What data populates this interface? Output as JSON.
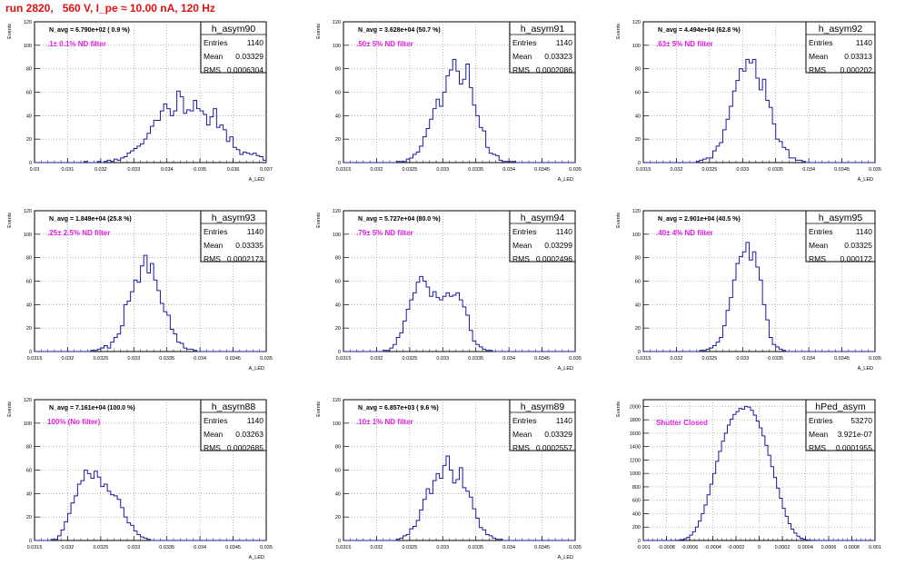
{
  "header": {
    "title": "run 2820,   560 V, I_pe ≈ 10.00 nA, 120 Hz"
  },
  "colors": {
    "histogram": "#1a1aa0",
    "note": "#e020e0",
    "title": "#e01010",
    "grid": "#888888"
  },
  "chart_data": [
    {
      "type": "bar",
      "name": "h_asym90",
      "navg_text": "N_avg = 6.790e+02 ( 0.9 %)",
      "note": ".1± 0.1% ND filter",
      "stats": {
        "entries": "1140",
        "mean": "0.03329",
        "rms": "0.0006304"
      },
      "ylabel": "Events",
      "xlabel": "A_LED",
      "xlim": [
        0.03,
        0.037
      ],
      "ylim": [
        0,
        120
      ],
      "xticks": [
        "0.03",
        "0.031",
        "0.032",
        "0.033",
        "0.034",
        "0.035",
        "0.036",
        "0.037"
      ],
      "yticks": [
        "0",
        "20",
        "40",
        "60",
        "80",
        "100",
        "120"
      ],
      "bins_x0": 0.03,
      "bin_width": 0.0001,
      "values": [
        0,
        0,
        0,
        0,
        0,
        0,
        0,
        0,
        0,
        0,
        0,
        0,
        0,
        0,
        0,
        1,
        0,
        0,
        0,
        1,
        0,
        1,
        2,
        1,
        3,
        2,
        4,
        5,
        8,
        10,
        12,
        14,
        16,
        20,
        25,
        31,
        36,
        36,
        44,
        50,
        46,
        40,
        44,
        61,
        56,
        42,
        45,
        44,
        53,
        46,
        44,
        41,
        32,
        39,
        46,
        30,
        32,
        28,
        18,
        22,
        13,
        11,
        7,
        9,
        8,
        7,
        8,
        6,
        5,
        2,
        5,
        4,
        1,
        1,
        1,
        2,
        0,
        1,
        0,
        0,
        0,
        0,
        0,
        0,
        0,
        0,
        0,
        0,
        0,
        0,
        0,
        0,
        0,
        0,
        0,
        0,
        0,
        0,
        0,
        0
      ]
    },
    {
      "type": "bar",
      "name": "h_asym91",
      "navg_text": "N_avg = 3.628e+04 (50.7 %)",
      "note": ".50± 5% ND filter",
      "stats": {
        "entries": "1140",
        "mean": "0.03323",
        "rms": "0.0002086"
      },
      "ylabel": "Events",
      "xlabel": "A_LED",
      "xlim": [
        0.0315,
        0.035
      ],
      "ylim": [
        0,
        120
      ],
      "xticks": [
        "0.0315",
        "0.032",
        "0.0325",
        "0.033",
        "0.0335",
        "0.034",
        "0.0345",
        "0.035"
      ],
      "yticks": [
        "0",
        "20",
        "40",
        "60",
        "80",
        "100",
        "120"
      ],
      "bins_x0": 0.0315,
      "bin_width": 5e-05,
      "values": [
        0,
        0,
        0,
        0,
        0,
        0,
        0,
        0,
        0,
        0,
        0,
        0,
        0,
        0,
        0,
        0,
        1,
        1,
        1,
        3,
        4,
        7,
        9,
        14,
        22,
        29,
        37,
        46,
        54,
        48,
        60,
        74,
        79,
        88,
        78,
        67,
        71,
        84,
        64,
        49,
        40,
        30,
        27,
        13,
        8,
        7,
        6,
        2,
        1,
        1,
        1,
        1,
        0,
        0,
        0,
        0,
        0,
        0,
        0,
        0,
        0,
        0,
        0,
        0,
        0,
        0,
        0,
        0,
        0,
        0
      ]
    },
    {
      "type": "bar",
      "name": "h_asym92",
      "navg_text": "N_avg = 4.494e+04 (62.8 %)",
      "note": ".63± 5% ND filter",
      "stats": {
        "entries": "1140",
        "mean": "0.03313",
        "rms": "0.000202"
      },
      "ylabel": "Events",
      "xlabel": "A_LED",
      "xlim": [
        0.0315,
        0.035
      ],
      "ylim": [
        0,
        120
      ],
      "xticks": [
        "0.0315",
        "0.032",
        "0.0325",
        "0.033",
        "0.0335",
        "0.034",
        "0.0345",
        "0.035"
      ],
      "yticks": [
        "0",
        "20",
        "40",
        "60",
        "80",
        "100",
        "120"
      ],
      "bins_x0": 0.0315,
      "bin_width": 5e-05,
      "values": [
        0,
        0,
        0,
        0,
        0,
        0,
        0,
        0,
        0,
        0,
        0,
        0,
        0,
        0,
        0,
        0,
        1,
        2,
        3,
        4,
        4,
        10,
        14,
        17,
        28,
        37,
        48,
        61,
        70,
        80,
        78,
        88,
        85,
        88,
        72,
        62,
        71,
        53,
        47,
        33,
        20,
        18,
        13,
        11,
        4,
        4,
        2,
        2,
        1,
        0,
        0,
        0,
        0,
        0,
        0,
        0,
        0,
        0,
        0,
        0,
        0,
        0,
        0,
        0,
        0,
        0,
        0,
        0,
        0,
        0
      ]
    },
    {
      "type": "bar",
      "name": "h_asym93",
      "navg_text": "N_avg = 1.849e+04 (25.8 %)",
      "note": ".25± 2.5% ND filter",
      "stats": {
        "entries": "1140",
        "mean": "0.03335",
        "rms": "0.0002173"
      },
      "ylabel": "Events",
      "xlabel": "A_LED",
      "xlim": [
        0.0315,
        0.035
      ],
      "ylim": [
        0,
        120
      ],
      "xticks": [
        "0.0315",
        "0.032",
        "0.0325",
        "0.033",
        "0.0335",
        "0.034",
        "0.0345",
        "0.035"
      ],
      "yticks": [
        "0",
        "20",
        "40",
        "60",
        "80",
        "100",
        "120"
      ],
      "bins_x0": 0.0315,
      "bin_width": 5e-05,
      "values": [
        0,
        0,
        0,
        0,
        0,
        0,
        0,
        0,
        0,
        0,
        0,
        0,
        0,
        0,
        0,
        0,
        0,
        1,
        1,
        2,
        3,
        5,
        3,
        8,
        12,
        15,
        22,
        40,
        43,
        51,
        61,
        59,
        73,
        82,
        67,
        75,
        61,
        52,
        41,
        34,
        31,
        19,
        15,
        8,
        7,
        3,
        2,
        2,
        1,
        0,
        0,
        0,
        0,
        0,
        0,
        0,
        0,
        0,
        0,
        0,
        0,
        0,
        0,
        0,
        0,
        0,
        0,
        0,
        0,
        0
      ]
    },
    {
      "type": "bar",
      "name": "h_asym94",
      "navg_text": "N_avg = 5.727e+04 (80.0 %)",
      "note": ".79± 5% ND filter",
      "stats": {
        "entries": "1140",
        "mean": "0.03299",
        "rms": "0.0002496"
      },
      "ylabel": "Events",
      "xlabel": "A_LED",
      "xlim": [
        0.0315,
        0.035
      ],
      "ylim": [
        0,
        120
      ],
      "xticks": [
        "0.0315",
        "0.032",
        "0.0325",
        "0.033",
        "0.0335",
        "0.034",
        "0.0345",
        "0.035"
      ],
      "yticks": [
        "0",
        "20",
        "40",
        "60",
        "80",
        "100",
        "120"
      ],
      "bins_x0": 0.0315,
      "bin_width": 5e-05,
      "values": [
        0,
        0,
        0,
        0,
        0,
        0,
        0,
        0,
        0,
        0,
        0,
        0,
        1,
        1,
        3,
        6,
        12,
        16,
        26,
        36,
        44,
        50,
        59,
        64,
        60,
        55,
        47,
        51,
        46,
        44,
        47,
        50,
        47,
        48,
        50,
        44,
        38,
        31,
        18,
        9,
        6,
        4,
        2,
        1,
        1,
        0,
        0,
        0,
        0,
        0,
        0,
        0,
        0,
        0,
        0,
        0,
        0,
        0,
        0,
        0,
        0,
        0,
        0,
        0,
        0,
        0,
        0,
        0,
        0,
        0
      ]
    },
    {
      "type": "bar",
      "name": "h_asym95",
      "navg_text": "N_avg = 2.901e+04 (40.5 %)",
      "note": ".40± 4% ND filter",
      "stats": {
        "entries": "1140",
        "mean": "0.03325",
        "rms": "0.000172"
      },
      "ylabel": "Events",
      "xlabel": "A_LED",
      "xlim": [
        0.0315,
        0.035
      ],
      "ylim": [
        0,
        120
      ],
      "xticks": [
        "0.0315",
        "0.032",
        "0.0325",
        "0.033",
        "0.0335",
        "0.034",
        "0.0345",
        "0.035"
      ],
      "yticks": [
        "0",
        "20",
        "40",
        "60",
        "80",
        "100",
        "120"
      ],
      "bins_x0": 0.0315,
      "bin_width": 5e-05,
      "values": [
        0,
        0,
        0,
        0,
        0,
        0,
        0,
        0,
        0,
        0,
        0,
        0,
        0,
        0,
        0,
        0,
        0,
        1,
        1,
        2,
        3,
        5,
        8,
        12,
        22,
        35,
        46,
        61,
        75,
        81,
        85,
        93,
        78,
        85,
        72,
        61,
        40,
        27,
        12,
        6,
        4,
        2,
        1,
        0,
        0,
        0,
        0,
        0,
        0,
        0,
        0,
        0,
        0,
        0,
        0,
        0,
        0,
        0,
        0,
        0,
        0,
        0,
        0,
        0,
        0,
        0,
        0,
        0,
        0,
        0
      ]
    },
    {
      "type": "bar",
      "name": "h_asym88",
      "navg_text": "N_avg = 7.161e+04 (100.0 %)",
      "note": "100% (No filter)",
      "stats": {
        "entries": "1140",
        "mean": "0.03263",
        "rms": "0.0002685"
      },
      "ylabel": "Events",
      "xlabel": "A_LED",
      "xlim": [
        0.0315,
        0.035
      ],
      "ylim": [
        0,
        120
      ],
      "xticks": [
        "0.0315",
        "0.032",
        "0.0325",
        "0.033",
        "0.0335",
        "0.034",
        "0.0345",
        "0.035"
      ],
      "yticks": [
        "0",
        "20",
        "40",
        "60",
        "80",
        "100",
        "120"
      ],
      "bins_x0": 0.0315,
      "bin_width": 5e-05,
      "values": [
        0,
        0,
        0,
        0,
        0,
        1,
        1,
        4,
        9,
        16,
        23,
        32,
        38,
        48,
        51,
        60,
        57,
        53,
        59,
        54,
        46,
        48,
        42,
        39,
        38,
        35,
        28,
        20,
        15,
        13,
        8,
        5,
        3,
        2,
        1,
        0,
        0,
        0,
        0,
        0,
        0,
        0,
        0,
        0,
        0,
        0,
        0,
        0,
        0,
        0,
        0,
        0,
        0,
        0,
        0,
        0,
        0,
        0,
        0,
        0,
        0,
        0,
        0,
        0,
        0,
        0,
        0,
        0,
        0,
        0
      ]
    },
    {
      "type": "bar",
      "name": "h_asym89",
      "navg_text": "N_avg = 6.857e+03 ( 9.6 %)",
      "note": ".10± 1% ND filter",
      "stats": {
        "entries": "1140",
        "mean": "0.03329",
        "rms": "0.0002557"
      },
      "ylabel": "Events",
      "xlabel": "A_LED",
      "xlim": [
        0.0315,
        0.035
      ],
      "ylim": [
        0,
        120
      ],
      "xticks": [
        "0.0315",
        "0.032",
        "0.0325",
        "0.033",
        "0.0335",
        "0.034",
        "0.0345",
        "0.035"
      ],
      "yticks": [
        "0",
        "20",
        "40",
        "60",
        "80",
        "100",
        "120"
      ],
      "bins_x0": 0.0315,
      "bin_width": 5e-05,
      "values": [
        0,
        0,
        0,
        0,
        0,
        0,
        0,
        0,
        0,
        0,
        0,
        0,
        0,
        0,
        0,
        0,
        1,
        2,
        4,
        5,
        10,
        12,
        17,
        26,
        35,
        44,
        40,
        51,
        57,
        53,
        64,
        72,
        60,
        49,
        52,
        62,
        45,
        42,
        37,
        27,
        19,
        11,
        9,
        5,
        4,
        2,
        1,
        1,
        0,
        0,
        0,
        0,
        0,
        0,
        0,
        0,
        0,
        0,
        0,
        0,
        0,
        0,
        0,
        0,
        0,
        0,
        0,
        0,
        0,
        0
      ]
    },
    {
      "type": "bar",
      "name": "hPed_asym",
      "navg_text": "",
      "note": "Shutter Closed",
      "stats": {
        "entries": "53270",
        "mean": "3.921e-07",
        "rms": "0.0001955"
      },
      "ylabel": "Events",
      "xlabel": "",
      "xlim": [
        -0.001,
        0.001
      ],
      "ylim": [
        0,
        2100
      ],
      "xticks": [
        "-0.001",
        "-0.0008",
        "-0.0006",
        "-0.0004",
        "-0.0002",
        "0",
        "0.0002",
        "0.0004",
        "0.0006",
        "0.0008",
        "0.001"
      ],
      "yticks": [
        "0",
        "200",
        "400",
        "600",
        "800",
        "1000",
        "1200",
        "1400",
        "1600",
        "1800",
        "2000"
      ],
      "bins_x0": -0.001,
      "bin_width": 2.5e-05,
      "values": [
        0,
        0,
        0,
        0,
        0,
        0,
        0,
        0,
        0,
        0,
        0,
        2,
        5,
        12,
        25,
        45,
        80,
        130,
        200,
        290,
        400,
        530,
        680,
        840,
        1000,
        1180,
        1330,
        1480,
        1600,
        1720,
        1810,
        1880,
        1920,
        1970,
        1960,
        2000,
        1990,
        1940,
        1870,
        1780,
        1680,
        1560,
        1420,
        1270,
        1100,
        940,
        780,
        630,
        480,
        360,
        250,
        170,
        110,
        65,
        35,
        18,
        8,
        4,
        2,
        1,
        0,
        0,
        0,
        0,
        0,
        0,
        0,
        0,
        0,
        0,
        0,
        0,
        0,
        0,
        0,
        0,
        0,
        0,
        0,
        0
      ]
    }
  ]
}
